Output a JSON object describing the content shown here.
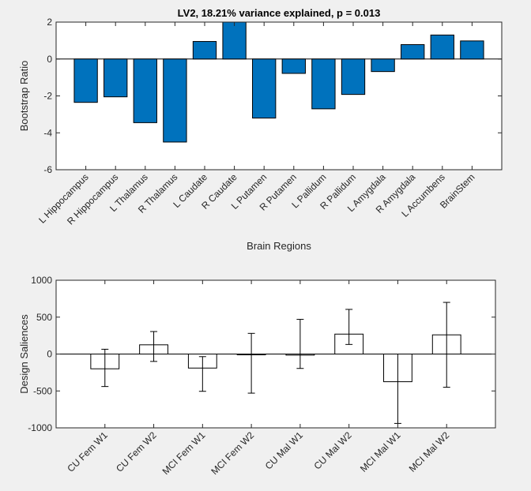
{
  "chart_data": [
    {
      "type": "bar",
      "title": "LV2, 18.21% variance explained, p = 0.013",
      "xlabel": "Brain Regions",
      "ylabel": "Bootstrap Ratio",
      "ylim": [
        -6,
        2
      ],
      "yticks": [
        -6,
        -4,
        -2,
        0,
        2
      ],
      "categories": [
        "L Hippocampus",
        "R Hippocampus",
        "L Thalamus",
        "R Thalamus",
        "L Caudate",
        "R Caudate",
        "L Putamen",
        "R Putamen",
        "L Pallidum",
        "R Pallidum",
        "L Amygdala",
        "R Amygdala",
        "L Accumbens",
        "BrainStem"
      ],
      "values": [
        -2.35,
        -2.05,
        -3.45,
        -4.5,
        0.95,
        2.0,
        -3.2,
        -0.78,
        -2.7,
        -1.92,
        -0.68,
        0.78,
        1.3,
        0.98
      ],
      "bar_color": "#0072bd",
      "grid": false
    },
    {
      "type": "bar",
      "title": "",
      "xlabel": "",
      "ylabel": "Design Saliences",
      "ylim": [
        -1000,
        1000
      ],
      "yticks": [
        -1000,
        -500,
        0,
        500,
        1000
      ],
      "categories": [
        "CU Fem W1",
        "CU Fem W2",
        "MCI Fem W1",
        "MCI Fem W2",
        "CU Mal W1",
        "CU Mal W2",
        "MCI Mal W1",
        "MCI Mal W2"
      ],
      "values": [
        -200,
        125,
        -190,
        -10,
        -15,
        270,
        -375,
        260
      ],
      "error_low": [
        -440,
        -100,
        -505,
        -530,
        -195,
        130,
        -940,
        -450
      ],
      "error_high": [
        65,
        305,
        -35,
        280,
        470,
        605,
        0,
        700
      ],
      "bar_color": "#ffffff",
      "grid": false
    }
  ]
}
